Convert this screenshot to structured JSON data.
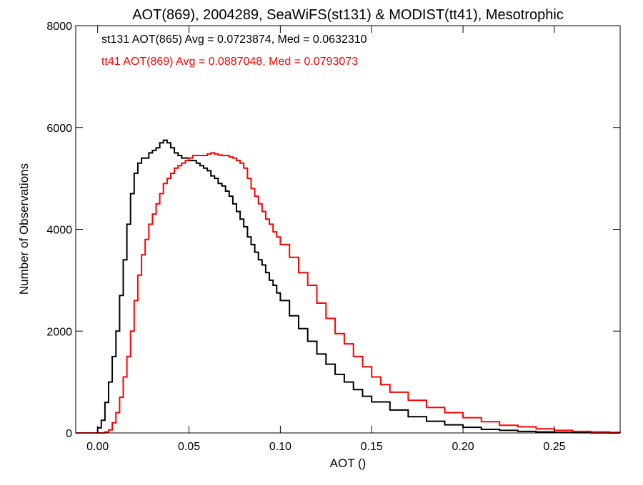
{
  "chart_data": {
    "type": "line",
    "title": "AOT(869), 2004289, SeaWiFS(st131) & MODIST(tt41), Mesotrophic",
    "xlabel": "AOT ()",
    "ylabel": "Number of Observations",
    "xlim": [
      -0.012,
      0.286
    ],
    "ylim": [
      0,
      8000
    ],
    "x_ticks": [
      0.0,
      0.05,
      0.1,
      0.15,
      0.2,
      0.25
    ],
    "x_tick_labels": [
      "0.00",
      "0.05",
      "0.10",
      "0.15",
      "0.20",
      "0.25"
    ],
    "y_ticks": [
      0,
      2000,
      4000,
      6000,
      8000
    ],
    "y_tick_labels": [
      "0",
      "2000",
      "4000",
      "6000",
      "8000"
    ],
    "grid": false,
    "annotations": [
      {
        "text": "st131 AOT(865) Avg = 0.0723874, Med = 0.0632310",
        "color": "#000000"
      },
      {
        "text": "tt41 AOT(869) Avg = 0.0887048, Med = 0.0793073",
        "color": "#ff0000"
      }
    ],
    "series": [
      {
        "color": "#000000",
        "x": [
          -0.012,
          -0.005,
          -0.001,
          0.0,
          0.002,
          0.004,
          0.006,
          0.008,
          0.01,
          0.012,
          0.014,
          0.016,
          0.018,
          0.02,
          0.022,
          0.024,
          0.026,
          0.028,
          0.03,
          0.032,
          0.034,
          0.036,
          0.038,
          0.04,
          0.042,
          0.044,
          0.046,
          0.048,
          0.05,
          0.052,
          0.054,
          0.056,
          0.058,
          0.06,
          0.062,
          0.064,
          0.066,
          0.068,
          0.07,
          0.072,
          0.074,
          0.076,
          0.078,
          0.08,
          0.082,
          0.084,
          0.086,
          0.088,
          0.09,
          0.092,
          0.094,
          0.096,
          0.098,
          0.1,
          0.105,
          0.11,
          0.115,
          0.12,
          0.125,
          0.13,
          0.135,
          0.14,
          0.145,
          0.15,
          0.16,
          0.17,
          0.18,
          0.19,
          0.2,
          0.21,
          0.22,
          0.23,
          0.24,
          0.25,
          0.26,
          0.27,
          0.28,
          0.286
        ],
        "y": [
          0,
          0,
          0,
          100,
          250,
          600,
          1000,
          1500,
          2000,
          2700,
          3400,
          4100,
          4700,
          5100,
          5300,
          5400,
          5400,
          5500,
          5550,
          5600,
          5700,
          5750,
          5700,
          5600,
          5500,
          5450,
          5400,
          5400,
          5350,
          5350,
          5300,
          5250,
          5200,
          5150,
          5050,
          5000,
          4900,
          4850,
          4750,
          4650,
          4500,
          4350,
          4200,
          4050,
          3850,
          3700,
          3550,
          3400,
          3300,
          3150,
          3000,
          2900,
          2750,
          2600,
          2300,
          2050,
          1800,
          1550,
          1350,
          1150,
          1000,
          850,
          720,
          610,
          450,
          320,
          230,
          160,
          110,
          70,
          50,
          30,
          20,
          10,
          5,
          2,
          0,
          0
        ]
      },
      {
        "color": "#ff0000",
        "x": [
          -0.012,
          0.0,
          0.004,
          0.006,
          0.008,
          0.01,
          0.012,
          0.014,
          0.016,
          0.018,
          0.02,
          0.022,
          0.024,
          0.026,
          0.028,
          0.03,
          0.032,
          0.034,
          0.036,
          0.038,
          0.04,
          0.042,
          0.044,
          0.046,
          0.048,
          0.05,
          0.052,
          0.054,
          0.056,
          0.058,
          0.06,
          0.062,
          0.064,
          0.066,
          0.068,
          0.07,
          0.072,
          0.074,
          0.076,
          0.078,
          0.08,
          0.082,
          0.084,
          0.086,
          0.088,
          0.09,
          0.092,
          0.094,
          0.096,
          0.098,
          0.1,
          0.105,
          0.11,
          0.115,
          0.12,
          0.125,
          0.13,
          0.135,
          0.14,
          0.145,
          0.15,
          0.155,
          0.16,
          0.17,
          0.18,
          0.19,
          0.2,
          0.21,
          0.22,
          0.23,
          0.24,
          0.25,
          0.26,
          0.27,
          0.28,
          0.286
        ],
        "y": [
          0,
          0,
          20,
          60,
          200,
          400,
          700,
          1100,
          1500,
          2000,
          2600,
          3100,
          3500,
          3800,
          4100,
          4300,
          4500,
          4700,
          4900,
          5000,
          5100,
          5200,
          5250,
          5300,
          5350,
          5400,
          5450,
          5450,
          5450,
          5450,
          5480,
          5500,
          5480,
          5460,
          5450,
          5450,
          5420,
          5400,
          5350,
          5300,
          5200,
          5000,
          4800,
          4650,
          4500,
          4350,
          4200,
          4100,
          3950,
          3850,
          3700,
          3450,
          3150,
          2900,
          2550,
          2250,
          1950,
          1750,
          1500,
          1300,
          1100,
          950,
          800,
          640,
          500,
          400,
          300,
          220,
          150,
          120,
          80,
          50,
          30,
          20,
          10,
          5
        ]
      }
    ]
  }
}
